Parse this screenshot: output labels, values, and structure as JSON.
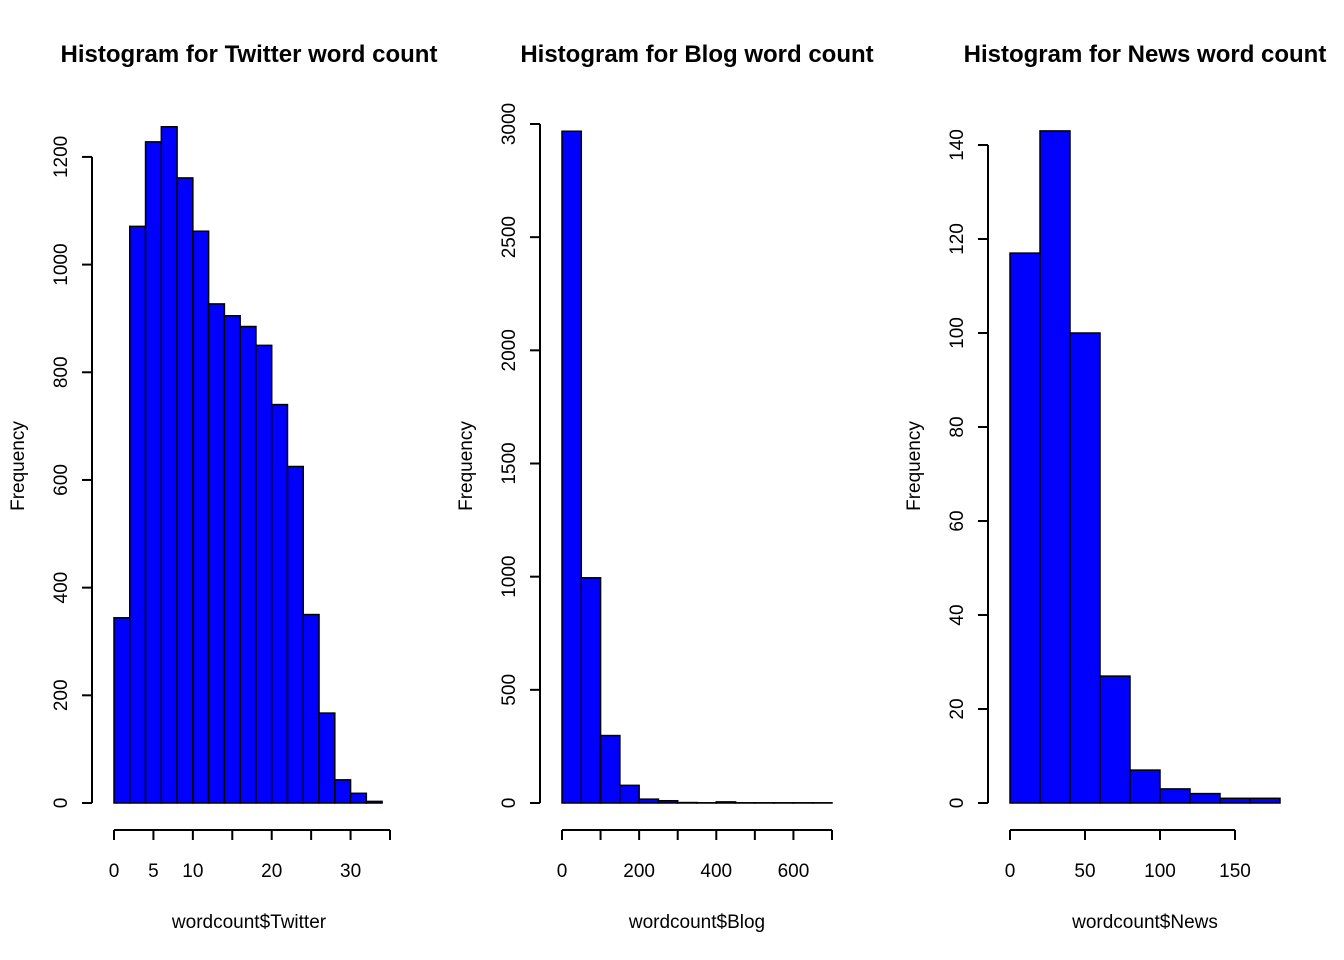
{
  "chart_data": [
    {
      "type": "bar",
      "title": "Histogram for Twitter word count",
      "xlabel": "wordcount$Twitter",
      "ylabel": "Frequency",
      "bar_color": "#0000ff",
      "bin_edges": [
        0,
        2,
        4,
        6,
        8,
        10,
        12,
        14,
        16,
        18,
        20,
        22,
        24,
        26,
        28,
        30,
        32,
        34
      ],
      "values": [
        344,
        1071,
        1228,
        1256,
        1161,
        1062,
        927,
        905,
        885,
        850,
        740,
        625,
        350,
        167,
        43,
        18,
        3
      ],
      "xlim": [
        0,
        35
      ],
      "ylim": [
        0,
        1250
      ],
      "x_ticks": [
        0,
        5,
        10,
        15,
        20,
        25,
        30,
        35
      ],
      "x_tick_labels": [
        "0",
        "5",
        "10",
        "",
        "20",
        "",
        "30",
        ""
      ],
      "y_ticks": [
        0,
        200,
        400,
        600,
        800,
        1000,
        1200
      ],
      "y_tick_labels": [
        "0",
        "200",
        "400",
        "600",
        "800",
        "1000",
        "1200"
      ]
    },
    {
      "type": "bar",
      "title": "Histogram for Blog word count",
      "xlabel": "wordcount$Blog",
      "ylabel": "Frequency",
      "bar_color": "#0000ff",
      "bin_edges": [
        0,
        50,
        100,
        150,
        200,
        250,
        300,
        350,
        400,
        450,
        500,
        550,
        600,
        650,
        700
      ],
      "values": [
        2968,
        995,
        298,
        78,
        17,
        10,
        2,
        1,
        5,
        1,
        1,
        1,
        1,
        1
      ],
      "xlim": [
        0,
        700
      ],
      "ylim": [
        0,
        3000
      ],
      "x_ticks": [
        0,
        100,
        200,
        300,
        400,
        500,
        600,
        700
      ],
      "x_tick_labels": [
        "0",
        "",
        "200",
        "",
        "400",
        "",
        "600",
        ""
      ],
      "y_ticks": [
        0,
        500,
        1000,
        1500,
        2000,
        2500,
        3000
      ],
      "y_tick_labels": [
        "0",
        "500",
        "1000",
        "1500",
        "2000",
        "2500",
        "3000"
      ]
    },
    {
      "type": "bar",
      "title": "Histogram for News word count",
      "xlabel": "wordcount$News",
      "ylabel": "Frequency",
      "bar_color": "#0000ff",
      "bin_edges": [
        0,
        20,
        40,
        60,
        80,
        100,
        120,
        140,
        160,
        180
      ],
      "values": [
        117,
        143,
        100,
        27,
        7,
        3,
        2,
        1,
        1
      ],
      "xlim": [
        0,
        180
      ],
      "ylim": [
        0,
        140
      ],
      "x_ticks": [
        0,
        50,
        100,
        150
      ],
      "x_tick_labels": [
        "0",
        "50",
        "100",
        "150"
      ],
      "y_ticks": [
        0,
        20,
        40,
        60,
        80,
        100,
        120,
        140
      ],
      "y_tick_labels": [
        "0",
        "20",
        "40",
        "60",
        "80",
        "100",
        "120",
        "140"
      ]
    }
  ]
}
